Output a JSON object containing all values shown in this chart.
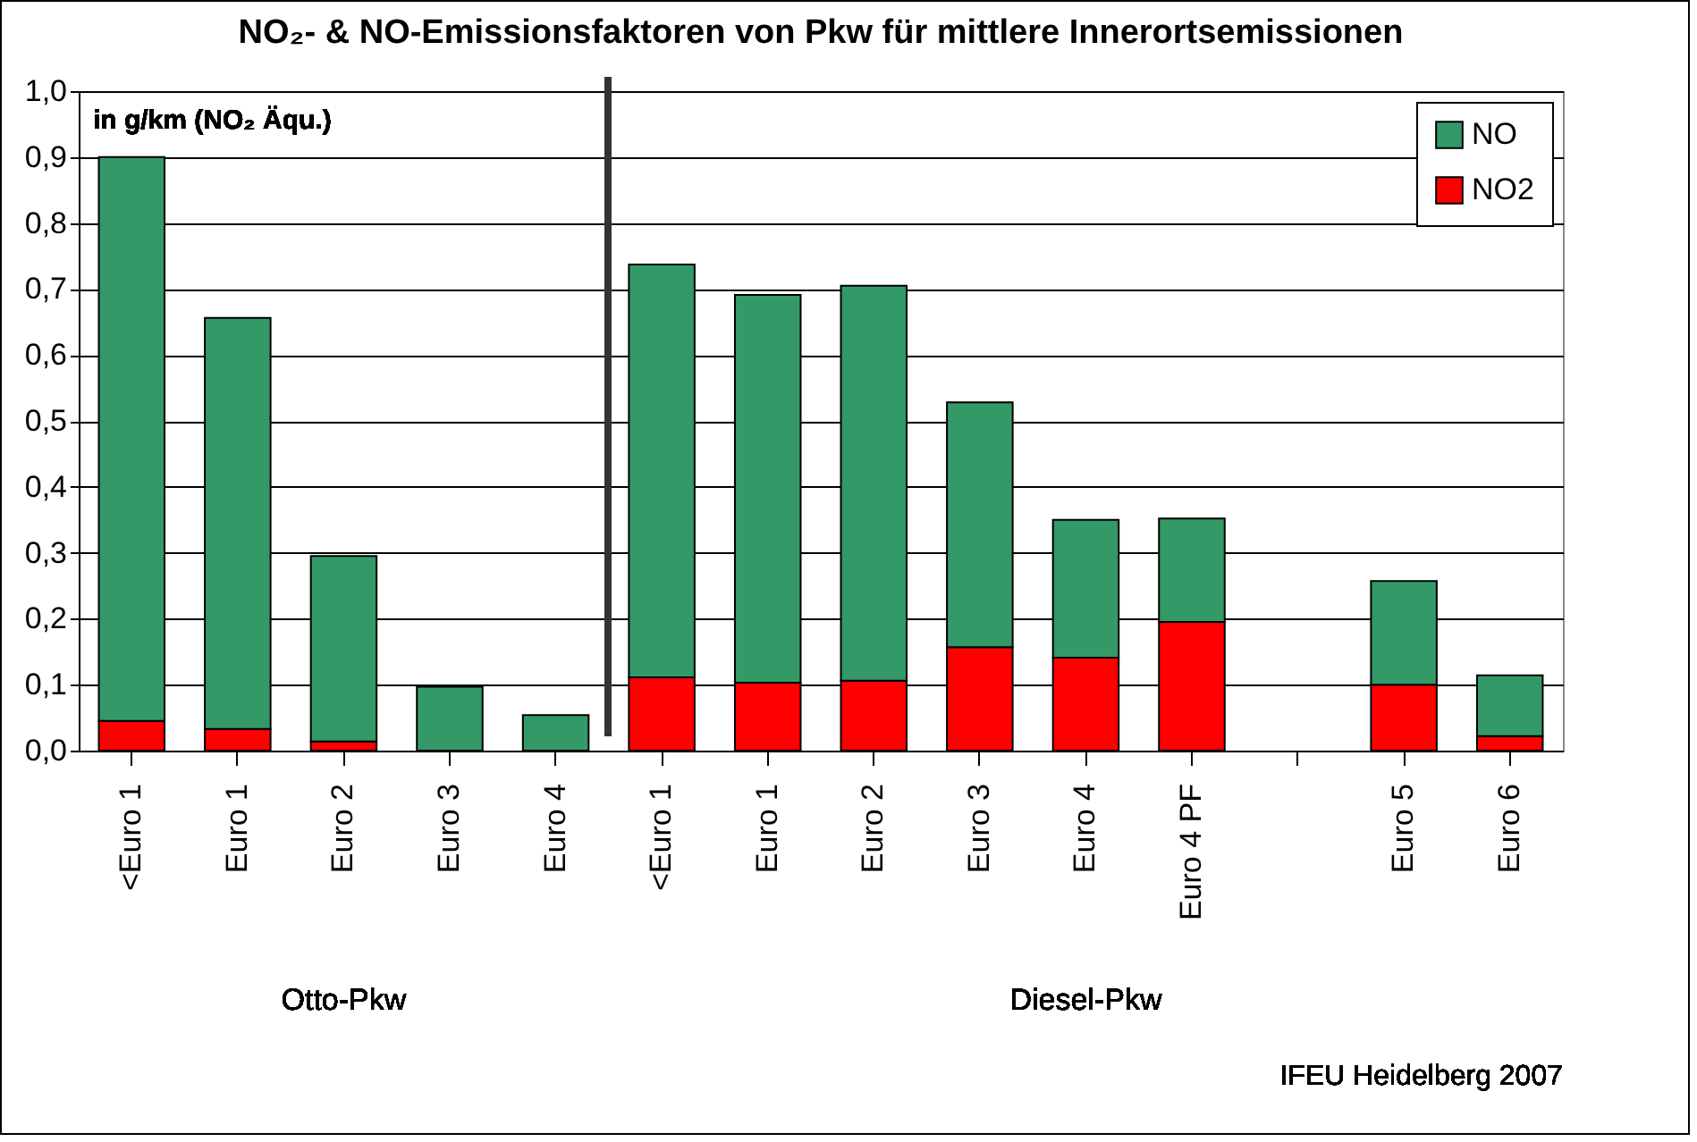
{
  "chart_data": {
    "type": "bar",
    "title": "NO₂- & NO-Emissionsfaktoren von Pkw für mittlere Innerortsemissionen",
    "categories": [
      "<Euro 1",
      "Euro 1",
      "Euro 2",
      "Euro 3",
      "Euro 4",
      "<Euro 1",
      "Euro 1",
      "Euro 2",
      "Euro 3",
      "Euro 4",
      "Euro 4 PF",
      null,
      "Euro 5",
      "Euro 6"
    ],
    "stacked": true,
    "series": [
      {
        "name": "NO2",
        "color": "#ff0000",
        "values": [
          0.045,
          0.033,
          0.014,
          null,
          null,
          0.111,
          0.103,
          0.106,
          0.157,
          0.141,
          0.195,
          null,
          0.1,
          0.022
        ]
      },
      {
        "name": "NO",
        "color": "#339966",
        "values": [
          0.855,
          0.623,
          0.281,
          0.097,
          0.054,
          0.626,
          0.588,
          0.599,
          0.371,
          0.209,
          0.157,
          null,
          0.157,
          0.092
        ]
      }
    ],
    "ylim": [
      0,
      1
    ],
    "yticks": [
      {
        "value": 0,
        "label": "0,0"
      },
      {
        "value": 0.1,
        "label": "0,1"
      },
      {
        "value": 0.2,
        "label": "0,2"
      },
      {
        "value": 0.3,
        "label": "0,3"
      },
      {
        "value": 0.4,
        "label": "0,4"
      },
      {
        "value": 0.5,
        "label": "0,5"
      },
      {
        "value": 0.6,
        "label": "0,6"
      },
      {
        "value": 0.7,
        "label": "0,7"
      },
      {
        "value": 0.8,
        "label": "0,8"
      },
      {
        "value": 0.9,
        "label": "0,9"
      },
      {
        "value": 1,
        "label": "1,0"
      }
    ],
    "grid": "y",
    "legend": "top right",
    "annotations": [
      "in g/km (NO₂ Äqu.)",
      "Otto-Pkw",
      "Diesel-Pkw",
      "IFEU Heidelberg 2007"
    ]
  }
}
